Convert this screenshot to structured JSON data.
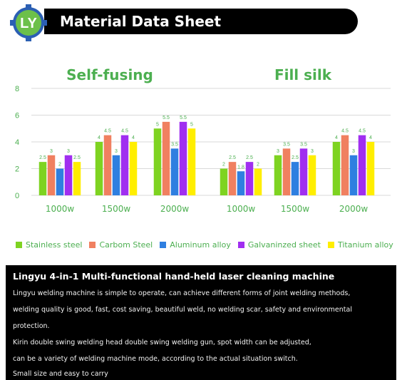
{
  "header": {
    "logo_text": "LY",
    "title": "Material Data Sheet"
  },
  "colors": {
    "stainless": "#7ed321",
    "carbon": "#f08060",
    "aluminum": "#2f7fe0",
    "galvanized": "#a02ff0",
    "titanium": "#ffee00",
    "title_green": "#4caf50",
    "tick_green": "#4caf50"
  },
  "chart_data": {
    "type": "bar",
    "groups": [
      {
        "title": "Self-fusing",
        "categories": [
          "1000w",
          "1500w",
          "2000w"
        ]
      },
      {
        "title": "Fill silk",
        "categories": [
          "1000w",
          "1500w",
          "2000w"
        ]
      }
    ],
    "ylim": [
      0,
      8
    ],
    "yticks": [
      "0",
      "2",
      "4",
      "6",
      "8"
    ],
    "grid": true,
    "legend_position": "bottom",
    "series": [
      {
        "name": "Stainless steel",
        "values": [
          2.5,
          4,
          5,
          2,
          3,
          4
        ]
      },
      {
        "name": "Carbom Steel",
        "values": [
          3,
          4.5,
          5.5,
          2.5,
          3.5,
          4.5
        ]
      },
      {
        "name": "Aluminum alloy",
        "values": [
          2,
          3,
          3.5,
          1.8,
          2.5,
          3
        ]
      },
      {
        "name": "Galvaninzed sheet",
        "values": [
          3,
          4.5,
          5.5,
          2.5,
          3.5,
          4.5
        ]
      },
      {
        "name": "Titanium alloy",
        "values": [
          2.5,
          4,
          5,
          2,
          3,
          4
        ]
      }
    ]
  },
  "description": {
    "title": "Lingyu 4-in-1 Multi-functional hand-held laser cleaning machine",
    "lines": [
      "Lingyu welding machine is simple to operate, can achieve different forms of joint welding methods,",
      "welding quality is good, fast, cost saving, beautiful weld, no welding scar, safety and environmental",
      "protection.",
      "Kirin double swing welding head double swing welding gun, spot width can be adjusted,",
      "can be a variety of welding machine mode, according to the actual situation switch.",
      "Small size and easy to carry"
    ]
  }
}
